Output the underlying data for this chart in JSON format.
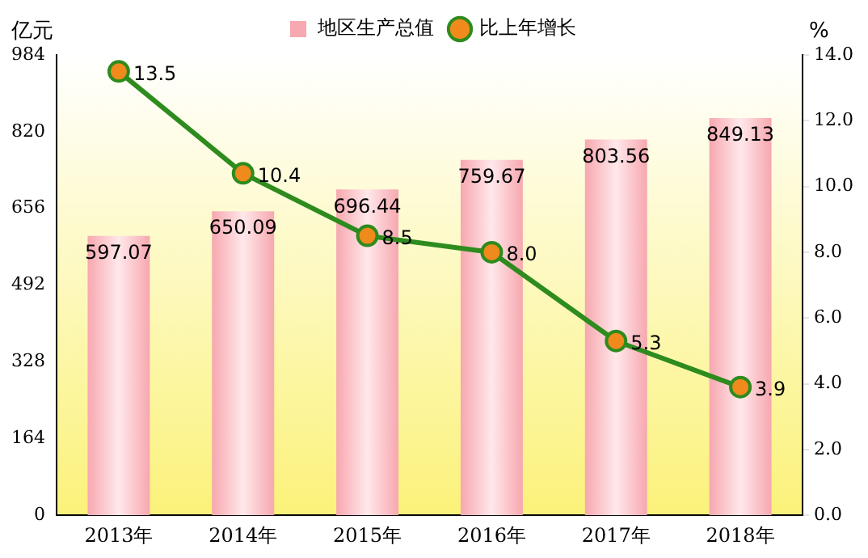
{
  "chart_data": {
    "type": "bar",
    "ylabel": "亿元",
    "y2label": "%",
    "legend": "top",
    "categories": [
      "2013年",
      "2014年",
      "2015年",
      "2016年",
      "2017年",
      "2018年"
    ],
    "series": [
      {
        "name": "地区生产总值",
        "color": "#f7a8b0",
        "values": [
          597.07,
          650.09,
          696.44,
          759.67,
          803.56,
          849.13
        ],
        "value_labels": [
          "597.07",
          "650.09",
          "696.44",
          "759.67",
          "803.56",
          "849.13"
        ]
      },
      {
        "name": "比上年增长",
        "type": "line",
        "axis": "y2",
        "color": "#2e8b1e",
        "marker": "circle",
        "values": [
          13.5,
          10.4,
          8.5,
          8.0,
          5.3,
          3.9
        ],
        "value_labels": [
          "13.5",
          "10.4",
          "8.5",
          "8.0",
          "5.3",
          "3.9"
        ]
      }
    ],
    "ylim": [
      0,
      984
    ],
    "yticks": [
      0,
      164,
      328,
      492,
      656,
      820,
      984
    ],
    "y2lim": [
      0,
      14
    ],
    "y2ticks": [
      {
        "value": 0,
        "label": "0.0"
      },
      {
        "value": 2,
        "label": "2.0"
      },
      {
        "value": 4,
        "label": "4.0"
      },
      {
        "value": 6,
        "label": "6.0"
      },
      {
        "value": 8,
        "label": "8.0"
      },
      {
        "value": 10,
        "label": "10.0"
      },
      {
        "value": 12,
        "label": "12.0"
      },
      {
        "value": 14,
        "label": "14.0"
      }
    ],
    "grid": false
  }
}
